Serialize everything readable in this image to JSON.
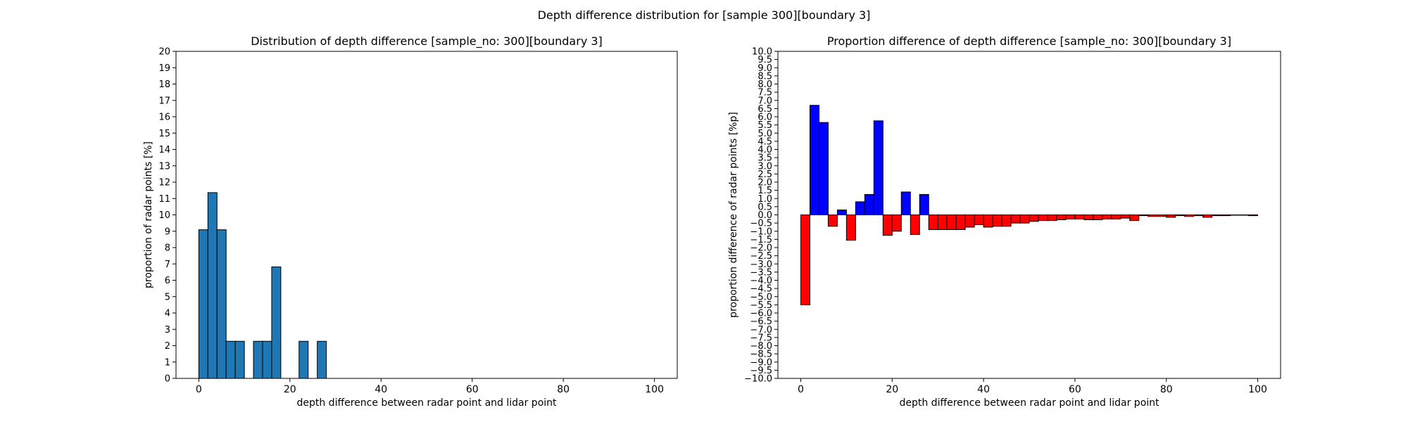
{
  "figure": {
    "suptitle": "Depth difference distribution for [sample 300][boundary 3]"
  },
  "chart_data": [
    {
      "type": "bar",
      "title": "Distribution of depth difference [sample_no: 300][boundary 3]",
      "xlabel": "depth difference between radar point and lidar point",
      "ylabel": "proportion of radar points [%]",
      "xlim": [
        -5,
        105
      ],
      "ylim": [
        0,
        20
      ],
      "xticks": [
        0,
        20,
        40,
        60,
        80,
        100
      ],
      "yticks": [
        0,
        1,
        2,
        3,
        4,
        5,
        6,
        7,
        8,
        9,
        10,
        11,
        12,
        13,
        14,
        15,
        16,
        17,
        18,
        19,
        20
      ],
      "bin_width": 2,
      "bar_color": "#1f77b4",
      "edge_color": "#000000",
      "bins": [
        {
          "x": 0,
          "value": 9.09
        },
        {
          "x": 2,
          "value": 11.36
        },
        {
          "x": 4,
          "value": 9.09
        },
        {
          "x": 6,
          "value": 2.27
        },
        {
          "x": 8,
          "value": 2.27
        },
        {
          "x": 12,
          "value": 2.27
        },
        {
          "x": 14,
          "value": 2.27
        },
        {
          "x": 16,
          "value": 6.82
        },
        {
          "x": 22,
          "value": 2.27
        },
        {
          "x": 26,
          "value": 2.27
        }
      ]
    },
    {
      "type": "bar",
      "title": "Proportion difference of depth difference [sample_no: 300][boundary 3]",
      "xlabel": "depth difference between radar point and lidar point",
      "ylabel": "proportion difference of radar points [%p]",
      "xlim": [
        -5,
        105
      ],
      "ylim": [
        -10,
        10
      ],
      "xticks": [
        0,
        20,
        40,
        60,
        80,
        100
      ],
      "yticks": [
        -10.0,
        -9.5,
        -9.0,
        -8.5,
        -8.0,
        -7.5,
        -7.0,
        -6.5,
        -6.0,
        -5.5,
        -5.0,
        -4.5,
        -4.0,
        -3.5,
        -3.0,
        -2.5,
        -2.0,
        -1.5,
        -1.0,
        -0.5,
        0.0,
        0.5,
        1.0,
        1.5,
        2.0,
        2.5,
        3.0,
        3.5,
        4.0,
        4.5,
        5.0,
        5.5,
        6.0,
        6.5,
        7.0,
        7.5,
        8.0,
        8.5,
        9.0,
        9.5,
        10.0
      ],
      "bin_width": 2,
      "positive_color": "#0000ff",
      "negative_color": "#ff0000",
      "edge_color": "#000000",
      "bins": [
        {
          "x": 0,
          "value": -5.5
        },
        {
          "x": 2,
          "value": 6.7
        },
        {
          "x": 4,
          "value": 5.65
        },
        {
          "x": 6,
          "value": -0.7
        },
        {
          "x": 8,
          "value": 0.3
        },
        {
          "x": 10,
          "value": -1.55
        },
        {
          "x": 12,
          "value": 0.8
        },
        {
          "x": 14,
          "value": 1.25
        },
        {
          "x": 16,
          "value": 5.75
        },
        {
          "x": 18,
          "value": -1.25
        },
        {
          "x": 20,
          "value": -1.0
        },
        {
          "x": 22,
          "value": 1.4
        },
        {
          "x": 24,
          "value": -1.2
        },
        {
          "x": 26,
          "value": 1.25
        },
        {
          "x": 28,
          "value": -0.9
        },
        {
          "x": 30,
          "value": -0.9
        },
        {
          "x": 32,
          "value": -0.9
        },
        {
          "x": 34,
          "value": -0.9
        },
        {
          "x": 36,
          "value": -0.75
        },
        {
          "x": 38,
          "value": -0.6
        },
        {
          "x": 40,
          "value": -0.75
        },
        {
          "x": 42,
          "value": -0.7
        },
        {
          "x": 44,
          "value": -0.7
        },
        {
          "x": 46,
          "value": -0.5
        },
        {
          "x": 48,
          "value": -0.5
        },
        {
          "x": 50,
          "value": -0.4
        },
        {
          "x": 52,
          "value": -0.35
        },
        {
          "x": 54,
          "value": -0.35
        },
        {
          "x": 56,
          "value": -0.3
        },
        {
          "x": 58,
          "value": -0.25
        },
        {
          "x": 60,
          "value": -0.25
        },
        {
          "x": 62,
          "value": -0.3
        },
        {
          "x": 64,
          "value": -0.3
        },
        {
          "x": 66,
          "value": -0.25
        },
        {
          "x": 68,
          "value": -0.25
        },
        {
          "x": 70,
          "value": -0.2
        },
        {
          "x": 72,
          "value": -0.35
        },
        {
          "x": 74,
          "value": -0.05
        },
        {
          "x": 76,
          "value": -0.1
        },
        {
          "x": 78,
          "value": -0.1
        },
        {
          "x": 80,
          "value": -0.15
        },
        {
          "x": 82,
          "value": -0.05
        },
        {
          "x": 84,
          "value": -0.1
        },
        {
          "x": 86,
          "value": -0.05
        },
        {
          "x": 88,
          "value": -0.15
        },
        {
          "x": 90,
          "value": -0.05
        },
        {
          "x": 92,
          "value": -0.05
        },
        {
          "x": 94,
          "value": -0.02
        },
        {
          "x": 96,
          "value": -0.02
        },
        {
          "x": 98,
          "value": -0.05
        }
      ]
    }
  ]
}
